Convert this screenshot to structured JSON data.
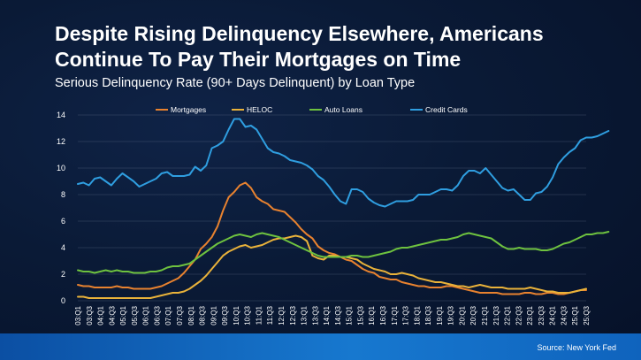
{
  "header": {
    "title_line1": "Despite Rising Delinquency Elsewhere, Americans",
    "title_line2": "Continue To Pay Their Mortgages on Time",
    "subtitle": "Serious Delinquency Rate (90+ Days Delinquent) by Loan Type"
  },
  "footer": {
    "source": "Source: New York Fed"
  },
  "chart_data": {
    "type": "line",
    "title": "",
    "xlabel": "",
    "ylabel": "",
    "ylim": [
      0,
      14
    ],
    "yticks": [
      0,
      2,
      4,
      6,
      8,
      10,
      12,
      14
    ],
    "grid": "horizontal",
    "legend_position": "top",
    "x_start": "03:Q1",
    "x_end": "25:Q3",
    "tick_labels": [
      "03:Q1",
      "03:Q3",
      "04:Q1",
      "04:Q3",
      "05:Q1",
      "05:Q3",
      "06:Q1",
      "06:Q3",
      "07:Q1",
      "07:Q3",
      "08:Q1",
      "08:Q3",
      "09:Q1",
      "09:Q3",
      "10:Q1",
      "10:Q3",
      "11:Q1",
      "11:Q3",
      "12:Q1",
      "12:Q3",
      "13:Q1",
      "13:Q3",
      "14:Q1",
      "14:Q3",
      "15:Q1",
      "15:Q3",
      "16:Q1",
      "16:Q3",
      "17:Q1",
      "17:Q3",
      "18:Q1",
      "18:Q3",
      "19:Q1",
      "19:Q3",
      "20:Q1",
      "20:Q3",
      "21:Q1",
      "21:Q3",
      "22:Q1",
      "22:Q3",
      "23:Q1",
      "23:Q3",
      "24:Q1",
      "24:Q3",
      "25:Q1",
      "25:Q3"
    ],
    "series": [
      {
        "name": "Mortgages",
        "color": "#e8822f",
        "values": [
          1.2,
          1.1,
          1.1,
          1.0,
          1.0,
          1.0,
          1.0,
          1.1,
          1.0,
          1.0,
          0.9,
          0.9,
          0.9,
          0.9,
          1.0,
          1.1,
          1.3,
          1.5,
          1.7,
          2.1,
          2.6,
          3.1,
          3.9,
          4.3,
          4.8,
          5.6,
          6.8,
          7.8,
          8.2,
          8.7,
          8.9,
          8.5,
          7.8,
          7.5,
          7.3,
          6.9,
          6.8,
          6.7,
          6.3,
          5.9,
          5.4,
          5.0,
          4.7,
          4.1,
          3.8,
          3.6,
          3.5,
          3.3,
          3.1,
          3.0,
          2.7,
          2.4,
          2.2,
          2.1,
          1.8,
          1.7,
          1.6,
          1.6,
          1.4,
          1.3,
          1.2,
          1.1,
          1.1,
          1.0,
          1.0,
          1.0,
          1.1,
          1.1,
          1.0,
          0.9,
          0.8,
          0.7,
          0.6,
          0.6,
          0.6,
          0.6,
          0.5,
          0.5,
          0.5,
          0.5,
          0.6,
          0.6,
          0.5,
          0.5,
          0.6,
          0.6,
          0.5,
          0.5,
          0.6,
          0.7,
          0.8,
          0.8
        ]
      },
      {
        "name": "HELOC",
        "color": "#e9b23a",
        "values": [
          0.3,
          0.3,
          0.2,
          0.2,
          0.2,
          0.2,
          0.2,
          0.2,
          0.2,
          0.2,
          0.2,
          0.2,
          0.2,
          0.2,
          0.3,
          0.4,
          0.5,
          0.6,
          0.6,
          0.7,
          0.9,
          1.2,
          1.5,
          1.9,
          2.4,
          2.9,
          3.4,
          3.7,
          3.9,
          4.1,
          4.2,
          4.0,
          4.1,
          4.2,
          4.4,
          4.6,
          4.7,
          4.7,
          4.8,
          4.9,
          4.8,
          4.5,
          3.4,
          3.2,
          3.1,
          3.4,
          3.4,
          3.3,
          3.3,
          3.2,
          3.1,
          2.8,
          2.6,
          2.4,
          2.3,
          2.2,
          2.0,
          2.0,
          2.1,
          2.0,
          1.9,
          1.7,
          1.6,
          1.5,
          1.4,
          1.4,
          1.3,
          1.2,
          1.1,
          1.1,
          1.0,
          1.1,
          1.2,
          1.1,
          1.0,
          1.0,
          1.0,
          0.9,
          0.9,
          0.9,
          0.9,
          1.0,
          0.9,
          0.8,
          0.7,
          0.7,
          0.6,
          0.6,
          0.6,
          0.7,
          0.8,
          0.9
        ]
      },
      {
        "name": "Auto Loans",
        "color": "#6ec23f",
        "values": [
          2.3,
          2.2,
          2.2,
          2.1,
          2.2,
          2.3,
          2.2,
          2.3,
          2.2,
          2.2,
          2.1,
          2.1,
          2.1,
          2.2,
          2.2,
          2.3,
          2.5,
          2.6,
          2.6,
          2.7,
          2.8,
          3.1,
          3.4,
          3.7,
          4.0,
          4.3,
          4.5,
          4.7,
          4.9,
          5.0,
          4.9,
          4.8,
          5.0,
          5.1,
          5.0,
          4.9,
          4.8,
          4.6,
          4.4,
          4.2,
          4.0,
          3.8,
          3.6,
          3.4,
          3.3,
          3.3,
          3.3,
          3.3,
          3.3,
          3.4,
          3.4,
          3.3,
          3.3,
          3.4,
          3.5,
          3.6,
          3.7,
          3.9,
          4.0,
          4.0,
          4.1,
          4.2,
          4.3,
          4.4,
          4.5,
          4.6,
          4.6,
          4.7,
          4.8,
          5.0,
          5.1,
          5.0,
          4.9,
          4.8,
          4.7,
          4.4,
          4.1,
          3.9,
          3.9,
          4.0,
          3.9,
          3.9,
          3.9,
          3.8,
          3.8,
          3.9,
          4.1,
          4.3,
          4.4,
          4.6,
          4.8,
          5.0,
          5.0,
          5.1,
          5.1,
          5.2
        ]
      },
      {
        "name": "Credit Cards",
        "color": "#2f9ee0",
        "values": [
          8.8,
          8.9,
          8.7,
          9.2,
          9.3,
          9.0,
          8.7,
          9.2,
          9.6,
          9.3,
          9.0,
          8.6,
          8.8,
          9.0,
          9.2,
          9.6,
          9.7,
          9.4,
          9.4,
          9.4,
          9.5,
          10.1,
          9.8,
          10.2,
          11.5,
          11.7,
          12.0,
          12.9,
          13.7,
          13.7,
          13.1,
          13.2,
          12.9,
          12.2,
          11.5,
          11.2,
          11.1,
          10.9,
          10.6,
          10.5,
          10.4,
          10.2,
          9.9,
          9.4,
          9.1,
          8.6,
          8.0,
          7.5,
          7.3,
          8.4,
          8.4,
          8.2,
          7.7,
          7.4,
          7.2,
          7.1,
          7.3,
          7.5,
          7.5,
          7.5,
          7.6,
          8.0,
          8.0,
          8.0,
          8.2,
          8.4,
          8.4,
          8.3,
          8.7,
          9.4,
          9.8,
          9.8,
          9.6,
          10.0,
          9.5,
          9.0,
          8.5,
          8.3,
          8.4,
          8.0,
          7.6,
          7.6,
          8.1,
          8.2,
          8.6,
          9.3,
          10.3,
          10.8,
          11.2,
          11.5,
          12.1,
          12.3,
          12.3,
          12.4,
          12.6,
          12.8
        ]
      }
    ]
  }
}
